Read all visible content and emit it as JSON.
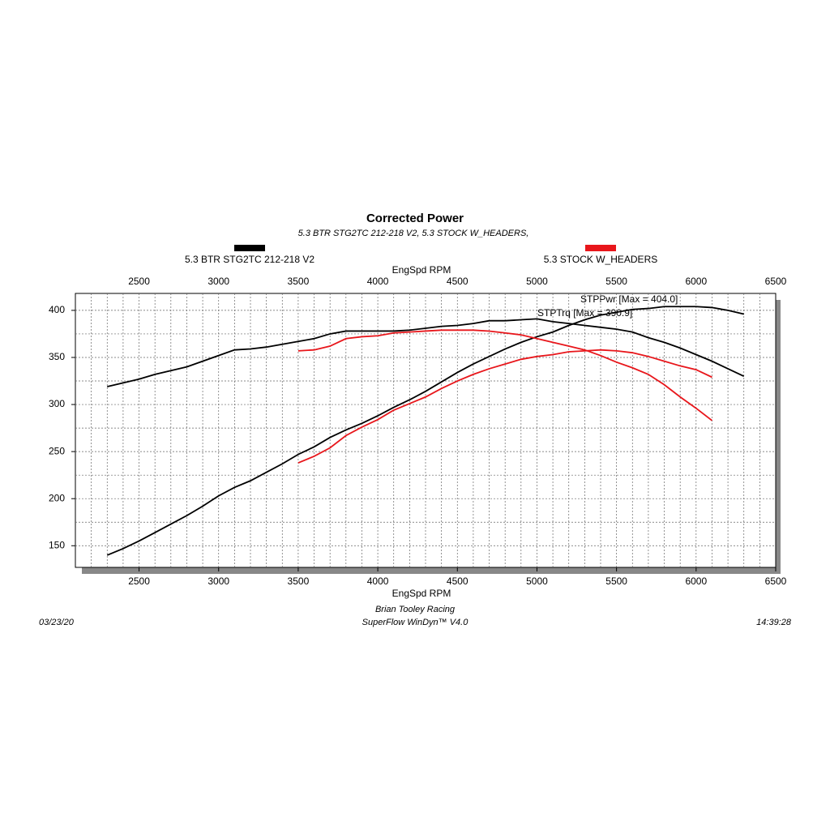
{
  "chart_data": {
    "type": "line",
    "title": "Corrected Power",
    "subtitle": "5.3 BTR STG2TC 212-218 V2, 5.3 STOCK W_HEADERS,",
    "xlabel": "EngSpd RPM",
    "xlim": [
      2100,
      6500
    ],
    "xticks": [
      2500,
      3000,
      3500,
      4000,
      4500,
      5000,
      5500,
      6000,
      6500
    ],
    "ylim": [
      127,
      418
    ],
    "yticks": [
      150,
      200,
      250,
      300,
      350,
      400
    ],
    "x_grid_step": 100,
    "y_grid_step": 25,
    "grid": true,
    "annotations": [
      "STPPwr [Max = 404.0]",
      "STPTrq [Max = 390.9]"
    ],
    "footer": {
      "date": "03/23/20",
      "shop": "Brian Tooley Racing",
      "software": "SuperFlow WinDyn™ V4.0",
      "time": "14:39:28"
    },
    "series": [
      {
        "name": "5.3 BTR STG2TC 212-218 V2",
        "color": "#000000",
        "x": [
          2300,
          2400,
          2500,
          2600,
          2700,
          2800,
          2900,
          3000,
          3100,
          3200,
          3300,
          3400,
          3500,
          3600,
          3700,
          3800,
          3900,
          4000,
          4100,
          4200,
          4300,
          4400,
          4500,
          4600,
          4700,
          4800,
          4900,
          5000,
          5100,
          5200,
          5300,
          5400,
          5500,
          5600,
          5700,
          5800,
          5900,
          6000,
          6100,
          6200,
          6300
        ],
        "power": [
          140,
          147,
          155,
          164,
          173,
          182,
          192,
          203,
          212,
          219,
          228,
          237,
          247,
          255,
          265,
          273,
          280,
          288,
          297,
          305,
          314,
          324,
          334,
          343,
          351,
          359,
          366,
          372,
          377,
          384,
          390,
          395,
          398,
          401,
          402,
          404,
          404,
          404,
          403,
          400,
          396
        ],
        "torque": [
          319,
          323,
          327,
          332,
          336,
          340,
          346,
          352,
          358,
          359,
          361,
          364,
          367,
          370,
          375,
          378,
          378,
          378,
          378,
          379,
          381,
          383,
          384,
          386,
          389,
          389,
          390,
          391,
          388,
          386,
          384,
          382,
          380,
          377,
          371,
          366,
          360,
          353,
          346,
          338,
          330
        ]
      },
      {
        "name": "5.3 STOCK W_HEADERS",
        "color": "#e8161b",
        "x": [
          3500,
          3600,
          3700,
          3800,
          3900,
          4000,
          4100,
          4200,
          4300,
          4400,
          4500,
          4600,
          4700,
          4800,
          4900,
          5000,
          5100,
          5200,
          5300,
          5400,
          5500,
          5600,
          5700,
          5800,
          5900,
          6000,
          6100
        ],
        "power": [
          238,
          245,
          254,
          267,
          276,
          284,
          294,
          301,
          308,
          317,
          325,
          332,
          338,
          343,
          348,
          351,
          353,
          356,
          357,
          358,
          357,
          355,
          351,
          346,
          341,
          337,
          329
        ],
        "torque": [
          357,
          358,
          362,
          370,
          372,
          373,
          376,
          377,
          378,
          379,
          379,
          379,
          378,
          376,
          374,
          370,
          366,
          362,
          358,
          352,
          345,
          339,
          332,
          321,
          308,
          296,
          283
        ]
      }
    ]
  }
}
